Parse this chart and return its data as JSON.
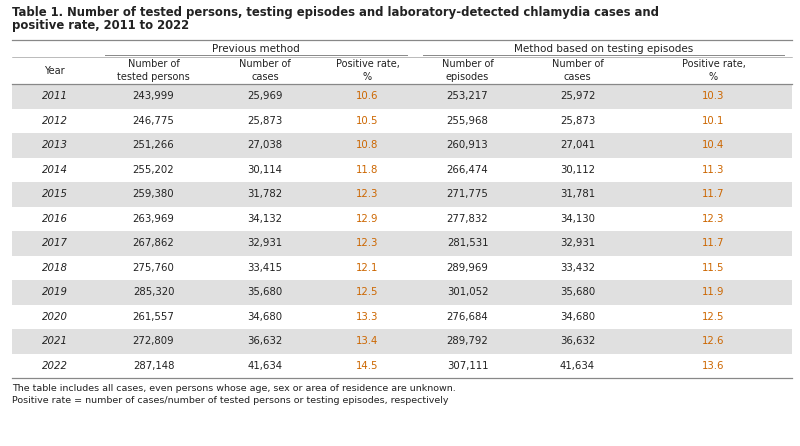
{
  "title_line1": "Table 1. Number of tested persons, testing episodes and laboratory-detected chlamydia cases and",
  "title_line2": "positive rate, 2011 to 2022",
  "footer1": "The table includes all cases, even persons whose age, sex or area of residence are unknown.",
  "footer2": "Positive rate = number of cases/number of tested persons or testing episodes, respectively",
  "col_group1": "Previous method",
  "col_group2": "Method based on testing episodes",
  "col_headers": [
    "Year",
    "Number of\ntested persons",
    "Number of\ncases",
    "Positive rate,\n%",
    "Number of\nepisodes",
    "Number of\ncases",
    "Positive rate,\n%"
  ],
  "rows": [
    [
      "2011",
      "243,999",
      "25,969",
      "10.6",
      "253,217",
      "25,972",
      "10.3"
    ],
    [
      "2012",
      "246,775",
      "25,873",
      "10.5",
      "255,968",
      "25,873",
      "10.1"
    ],
    [
      "2013",
      "251,266",
      "27,038",
      "10.8",
      "260,913",
      "27,041",
      "10.4"
    ],
    [
      "2014",
      "255,202",
      "30,114",
      "11.8",
      "266,474",
      "30,112",
      "11.3"
    ],
    [
      "2015",
      "259,380",
      "31,782",
      "12.3",
      "271,775",
      "31,781",
      "11.7"
    ],
    [
      "2016",
      "263,969",
      "34,132",
      "12.9",
      "277,832",
      "34,130",
      "12.3"
    ],
    [
      "2017",
      "267,862",
      "32,931",
      "12.3",
      "281,531",
      "32,931",
      "11.7"
    ],
    [
      "2018",
      "275,760",
      "33,415",
      "12.1",
      "289,969",
      "33,432",
      "11.5"
    ],
    [
      "2019",
      "285,320",
      "35,680",
      "12.5",
      "301,052",
      "35,680",
      "11.9"
    ],
    [
      "2020",
      "261,557",
      "34,680",
      "13.3",
      "276,684",
      "34,680",
      "12.5"
    ],
    [
      "2021",
      "272,809",
      "36,632",
      "13.4",
      "289,792",
      "36,632",
      "12.6"
    ],
    [
      "2022",
      "287,148",
      "41,634",
      "14.5",
      "307,111",
      "41,634",
      "13.6"
    ]
  ],
  "shaded_rows": [
    0,
    2,
    4,
    6,
    8,
    10
  ],
  "orange_cols": [
    3,
    6
  ],
  "bg_color": "#ffffff",
  "shade_color": "#e0e0e0",
  "orange_color": "#cc6600",
  "text_color": "#222222",
  "border_color": "#888888"
}
